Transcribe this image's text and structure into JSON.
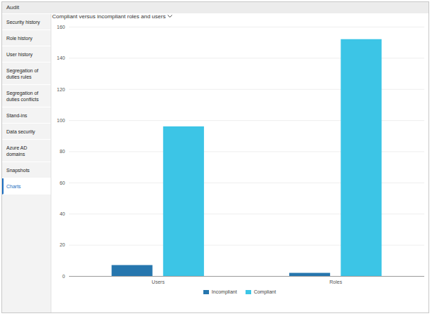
{
  "header": {
    "title": "Audit"
  },
  "navigation": {
    "items": [
      "Security history",
      "Role history",
      "User history",
      "Segregation of duties rules",
      "Segregation of duties conflicts",
      "Stand-ins",
      "Data security",
      "Azure AD domains",
      "Snapshots",
      "Charts"
    ],
    "selected": "Charts"
  },
  "chart_data": {
    "type": "bar",
    "title": "Compliant versus incompliant roles and users",
    "categories": [
      "Users",
      "Roles"
    ],
    "series": [
      {
        "name": "Incompliant",
        "color": "#2676ae",
        "values": [
          7,
          2
        ]
      },
      {
        "name": "Compliant",
        "color": "#3cc5e6",
        "values": [
          96,
          152
        ]
      }
    ],
    "ylim": [
      0,
      160
    ],
    "yticks": [
      0,
      20,
      40,
      60,
      80,
      100,
      120,
      140,
      160
    ],
    "grid": true,
    "legend": "bottom"
  }
}
